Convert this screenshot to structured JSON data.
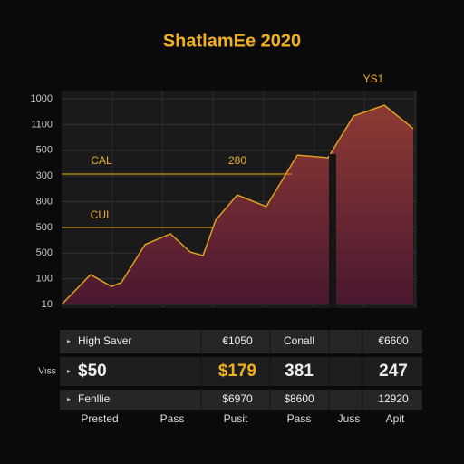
{
  "chart_data": {
    "type": "area",
    "title": "ShatlamEe 2020",
    "x": [
      0,
      8.2,
      14.1,
      16.9,
      23.6,
      30.8,
      36.4,
      40.0,
      43.6,
      49.7,
      57.9,
      66.7,
      75.4,
      82.6,
      91.3,
      99.5
    ],
    "series": [
      {
        "name": "YS1",
        "color": "#e0a020",
        "values": [
          0,
          1.16,
          0.7,
          0.85,
          2.33,
          2.75,
          2.04,
          1.9,
          3.28,
          4.26,
          3.81,
          5.81,
          5.71,
          7.33,
          7.75,
          6.84
        ]
      }
    ],
    "xlim": [
      0,
      100
    ],
    "ylim": [
      0,
      8
    ],
    "yticks": [
      {
        "value": 0,
        "label": "10"
      },
      {
        "value": 1,
        "label": "100"
      },
      {
        "value": 2,
        "label": "500"
      },
      {
        "value": 3,
        "label": "500"
      },
      {
        "value": 4,
        "label": "800"
      },
      {
        "value": 5,
        "label": "300"
      },
      {
        "value": 6,
        "label": "500"
      },
      {
        "value": 7,
        "label": "1100"
      },
      {
        "value": 8,
        "label": "1000"
      }
    ],
    "grid": true,
    "annotations": [
      "CAL",
      "280",
      "CUI"
    ]
  },
  "table": {
    "side_label": "Vıss",
    "rows": [
      [
        "High Saver",
        "€1050",
        "Conall",
        "€6600"
      ],
      [
        "$50",
        "$179",
        "381",
        "247"
      ],
      [
        "Fenllie",
        "$6970",
        "$8600",
        "12920"
      ]
    ],
    "footer": [
      "Prested",
      "Pass",
      "Pusit",
      "Pass",
      "Juss",
      "Apit"
    ]
  }
}
